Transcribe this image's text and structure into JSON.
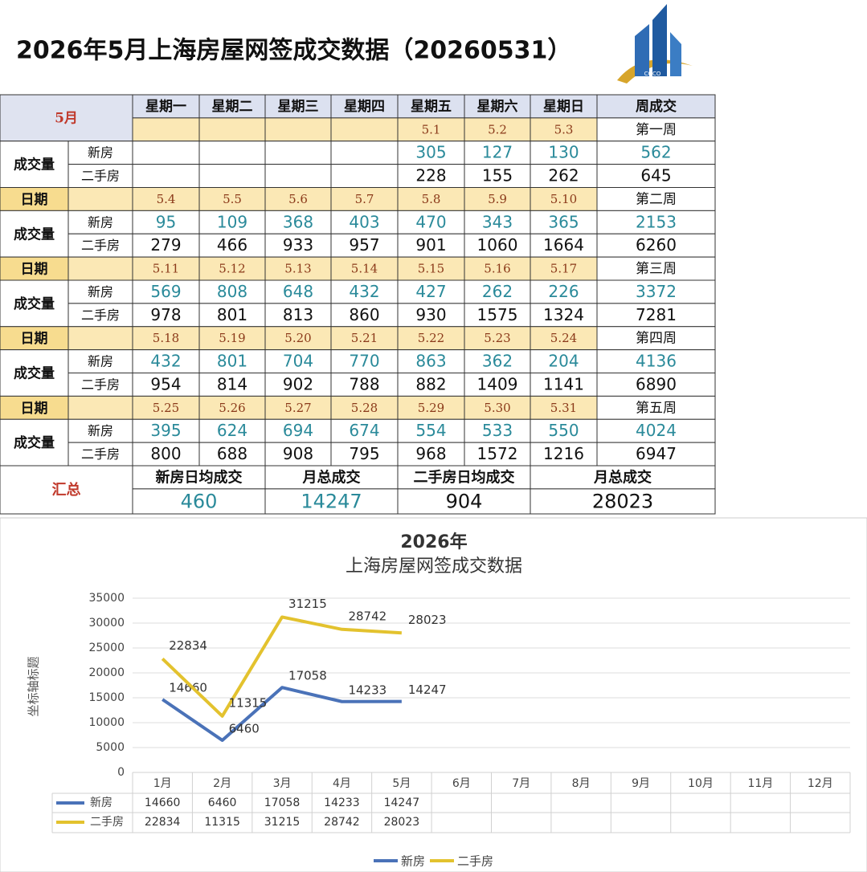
{
  "header": {
    "title": "2026年5月上海房屋网签成交数据（20260531）",
    "logo_text": "COCO"
  },
  "table": {
    "month": "5月",
    "columns": [
      "星期一",
      "星期二",
      "星期三",
      "星期四",
      "星期五",
      "星期六",
      "星期日",
      "周成交"
    ],
    "volume_label": "成交量",
    "new_label": "新房",
    "resale_label": "二手房",
    "date_label": "日期",
    "weeks": [
      {
        "dates": [
          null,
          null,
          null,
          null,
          "5.1",
          "5.2",
          "5.3"
        ],
        "week": "第一周",
        "new": [
          null,
          null,
          null,
          null,
          305,
          127,
          130
        ],
        "new_total": 562,
        "resale": [
          null,
          null,
          null,
          null,
          228,
          155,
          262
        ],
        "resale_total": 645
      },
      {
        "dates": [
          "5.4",
          "5.5",
          "5.6",
          "5.7",
          "5.8",
          "5.9",
          "5.10"
        ],
        "week": "第二周",
        "new": [
          95,
          109,
          368,
          403,
          470,
          343,
          365
        ],
        "new_total": 2153,
        "resale": [
          279,
          466,
          933,
          957,
          901,
          1060,
          1664
        ],
        "resale_total": 6260
      },
      {
        "dates": [
          "5.11",
          "5.12",
          "5.13",
          "5.14",
          "5.15",
          "5.16",
          "5.17"
        ],
        "week": "第三周",
        "new": [
          569,
          808,
          648,
          432,
          427,
          262,
          226
        ],
        "new_total": 3372,
        "resale": [
          978,
          801,
          813,
          860,
          930,
          1575,
          1324
        ],
        "resale_total": 7281
      },
      {
        "dates": [
          "5.18",
          "5.19",
          "5.20",
          "5.21",
          "5.22",
          "5.23",
          "5.24"
        ],
        "week": "第四周",
        "new": [
          432,
          801,
          704,
          770,
          863,
          362,
          204
        ],
        "new_total": 4136,
        "resale": [
          954,
          814,
          902,
          788,
          882,
          1409,
          1141
        ],
        "resale_total": 6890
      },
      {
        "dates": [
          "5.25",
          "5.26",
          "5.27",
          "5.28",
          "5.29",
          "5.30",
          "5.31"
        ],
        "week": "第五周",
        "new": [
          395,
          624,
          694,
          674,
          554,
          533,
          550
        ],
        "new_total": 4024,
        "resale": [
          800,
          688,
          908,
          795,
          968,
          1572,
          1216
        ],
        "resale_total": 6947
      }
    ],
    "summary": {
      "label": "汇总",
      "headers": [
        "新房日均成交",
        "月总成交",
        "二手房日均成交",
        "月总成交"
      ],
      "values": [
        460,
        14247,
        904,
        28023
      ]
    }
  },
  "chart_data": {
    "type": "line",
    "title": "2026年",
    "subtitle": "上海房屋网签成交数据",
    "y_label": "坐标轴标题",
    "categories": [
      "1月",
      "2月",
      "3月",
      "4月",
      "5月",
      "6月",
      "7月",
      "8月",
      "9月",
      "10月",
      "11月",
      "12月"
    ],
    "series": [
      {
        "name": "新房",
        "color": "#4a72b8",
        "values": [
          14660,
          6460,
          17058,
          14233,
          14247,
          null,
          null,
          null,
          null,
          null,
          null,
          null
        ]
      },
      {
        "name": "二手房",
        "color": "#e3c22e",
        "values": [
          22834,
          11315,
          31215,
          28742,
          28023,
          null,
          null,
          null,
          null,
          null,
          null,
          null
        ]
      }
    ],
    "ylim": [
      0,
      35000
    ],
    "yticks": [
      0,
      5000,
      10000,
      15000,
      20000,
      25000,
      30000,
      35000
    ],
    "grid": true,
    "legend": "bottom",
    "data_table": true
  }
}
